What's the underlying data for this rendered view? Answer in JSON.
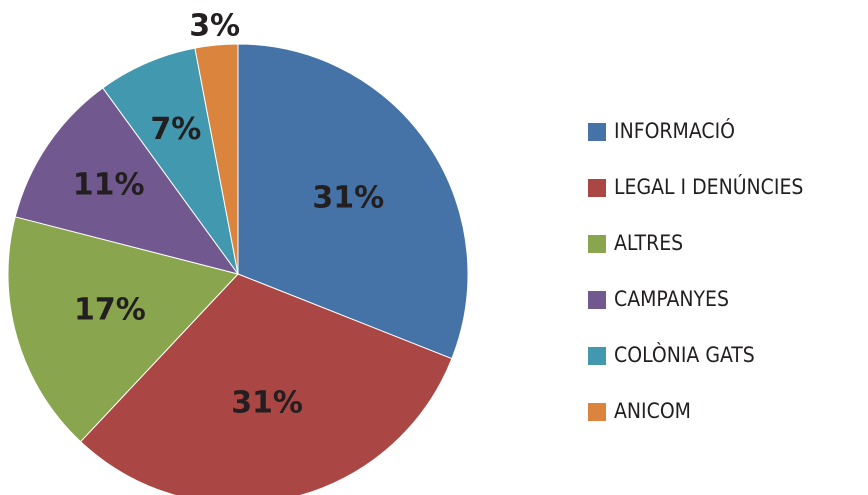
{
  "chart_data": {
    "type": "pie",
    "categories": [
      "INFORMACIÓ",
      "LEGAL I DENÚNCIES",
      "ALTRES",
      "CAMPANYES",
      "COLÒNIA GATS",
      "ANICOM"
    ],
    "values": [
      31,
      31,
      17,
      11,
      7,
      3
    ],
    "value_labels": [
      "31%",
      "31%",
      "17%",
      "11%",
      "7%",
      "3%"
    ],
    "colors": [
      "#4572a7",
      "#aa4643",
      "#89a54e",
      "#71588f",
      "#4198af",
      "#db843d"
    ],
    "legend": "right"
  }
}
